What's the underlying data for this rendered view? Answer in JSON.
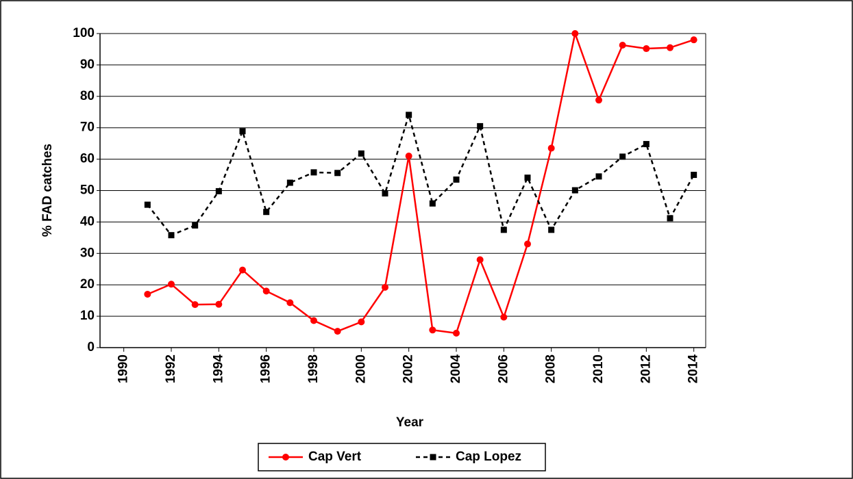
{
  "chart_data": {
    "type": "line",
    "x_label": "Year",
    "y_label": "% FAD catches",
    "x": [
      1991,
      1992,
      1993,
      1994,
      1995,
      1996,
      1997,
      1998,
      1999,
      2000,
      2001,
      2002,
      2003,
      2004,
      2005,
      2006,
      2007,
      2008,
      2009,
      2010,
      2011,
      2012,
      2013,
      2014
    ],
    "series": [
      {
        "name": "Cap Vert",
        "color": "#ff0000",
        "style": "solid",
        "marker": "circle",
        "values": [
          17,
          20.2,
          13.7,
          13.8,
          24.7,
          18,
          14.3,
          8.6,
          5.2,
          8.2,
          19.2,
          61,
          5.6,
          4.6,
          28,
          9.7,
          33,
          63.5,
          100,
          78.8,
          96.3,
          95.2,
          95.5,
          98
        ]
      },
      {
        "name": "Cap Lopez",
        "color": "#000000",
        "style": "dashed",
        "marker": "square",
        "values": [
          45.5,
          35.8,
          38.9,
          49.8,
          68.9,
          43.2,
          52.5,
          55.8,
          55.6,
          61.8,
          49.1,
          74.1,
          45.9,
          53.5,
          70.5,
          37.5,
          54.1,
          37.5,
          50.1,
          54.5,
          60.8,
          64.8,
          41.2,
          55
        ]
      }
    ],
    "xlim": [
      1989,
      2014.5
    ],
    "xticks": [
      1990,
      1992,
      1994,
      1996,
      1998,
      2000,
      2002,
      2004,
      2006,
      2008,
      2010,
      2012,
      2014
    ],
    "ylim": [
      0,
      100
    ],
    "yticks": [
      0,
      10,
      20,
      30,
      40,
      50,
      60,
      70,
      80,
      90,
      100
    ],
    "grid": true,
    "legend": "bottom"
  }
}
